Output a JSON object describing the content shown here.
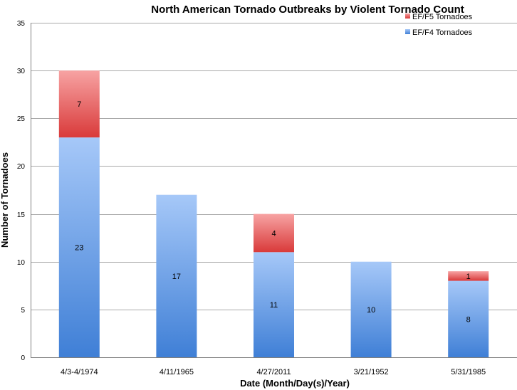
{
  "chart_data": {
    "type": "bar",
    "stacked": true,
    "title": "North American Tornado Outbreaks by Violent Tornado Count",
    "xlabel": "Date (Month/Day(s)/Year)",
    "ylabel": "Number of Tornadoes",
    "ylim": [
      0,
      35
    ],
    "yticks": [
      0,
      5,
      10,
      15,
      20,
      25,
      30,
      35
    ],
    "grid": true,
    "legend_position": "top-right",
    "categories": [
      "4/3-4/1974",
      "4/11/1965",
      "4/27/2011",
      "3/21/1952",
      "5/31/1985"
    ],
    "series": [
      {
        "name": "EF/F4 Tornadoes",
        "values": [
          23,
          17,
          11,
          10,
          8
        ],
        "color": "#6a9ee6"
      },
      {
        "name": "EF/F5 Tornadoes",
        "values": [
          7,
          0,
          4,
          0,
          1
        ],
        "color": "#e85a5a"
      }
    ],
    "data_labels": true
  }
}
